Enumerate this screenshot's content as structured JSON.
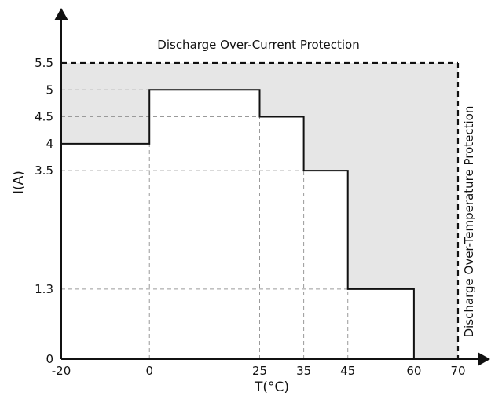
{
  "chart_data": {
    "type": "line",
    "title": "",
    "xlabel": "T(°C)",
    "ylabel": "I(A)",
    "xlim": [
      -20,
      70
    ],
    "ylim": [
      0,
      5.5
    ],
    "x_ticks": [
      -20,
      0,
      25,
      35,
      45,
      60,
      70
    ],
    "y_ticks": [
      0,
      1.3,
      3.5,
      4,
      4.5,
      5,
      5.5
    ],
    "grid": "dashed guide lines at step corners",
    "steps": [
      {
        "x_start": -20,
        "x_end": 0,
        "value": 4
      },
      {
        "x_start": 0,
        "x_end": 25,
        "value": 5
      },
      {
        "x_start": 25,
        "x_end": 35,
        "value": 4.5
      },
      {
        "x_start": 35,
        "x_end": 45,
        "value": 3.5
      },
      {
        "x_start": 45,
        "x_end": 60,
        "value": 1.3
      },
      {
        "x_start": 60,
        "x_end": 70,
        "value": 0
      }
    ],
    "limits": {
      "current_limit": 5.5,
      "temperature_limit": 70
    },
    "annotations": {
      "top": "Discharge Over-Current Protection",
      "right": "Discharge Over-Temperature Protection"
    },
    "colors": {
      "protection_region": "#e6e6e6",
      "step_line": "#111111",
      "grid": "#9a9a9a",
      "axis": "#111111"
    }
  }
}
